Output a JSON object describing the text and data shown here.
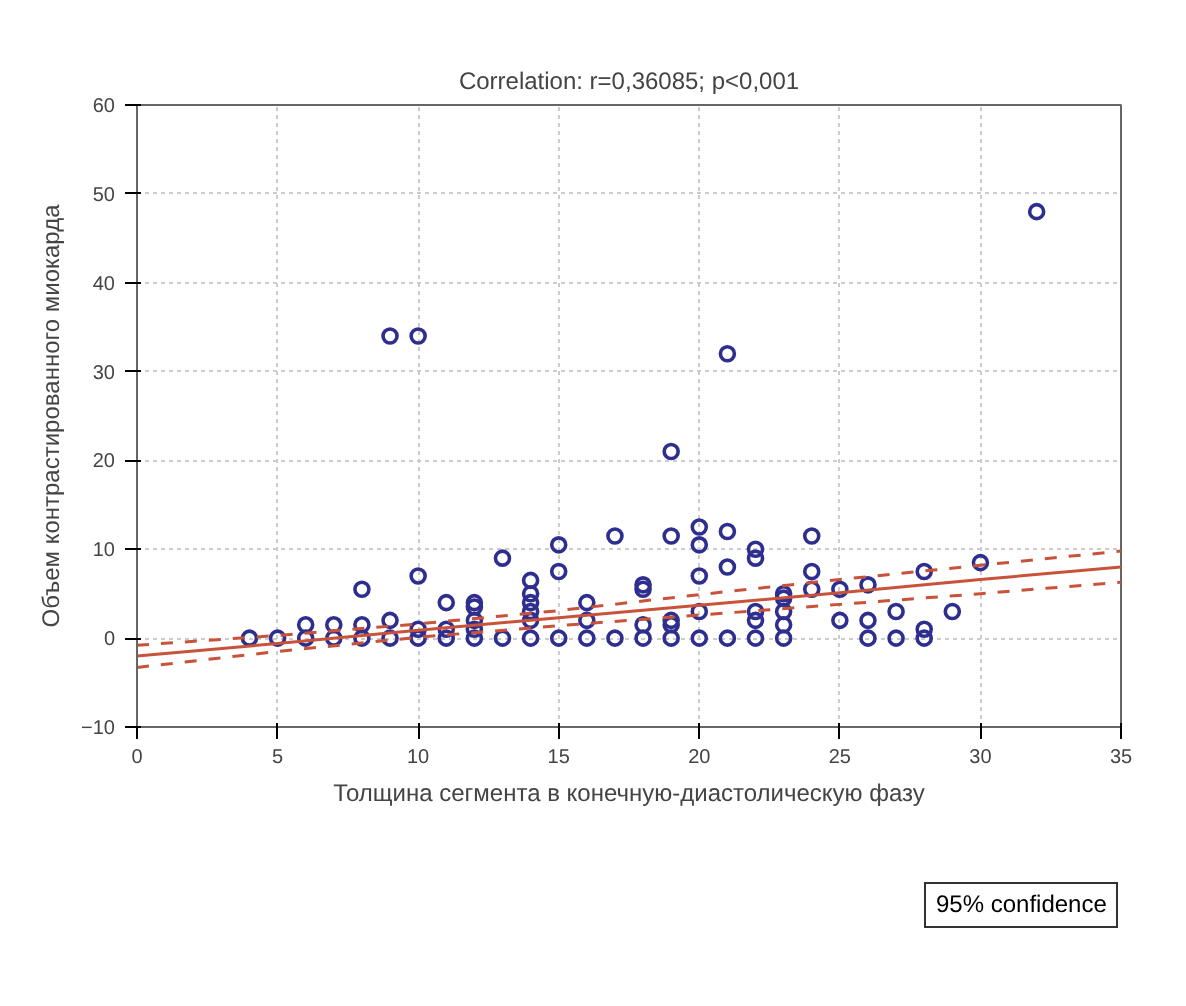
{
  "chart_data": {
    "type": "scatter",
    "title": "Correlation: r=0,36085; p<0,001",
    "xlabel": "Толщина сегмента в конечную-диастолическую фазу",
    "ylabel": "Объем контрастированного миокарда",
    "xlim": [
      0,
      35
    ],
    "ylim": [
      -10,
      60
    ],
    "xticks": [
      0,
      5,
      10,
      15,
      20,
      25,
      30,
      35
    ],
    "yticks": [
      -10,
      0,
      10,
      20,
      30,
      40,
      50,
      60
    ],
    "grid": true,
    "marker": "circle",
    "annotations": [
      "95% confidence"
    ],
    "series": [
      {
        "color": "#2e2e8f",
        "x": [
          4,
          5,
          6,
          6,
          7,
          7,
          8,
          8,
          8,
          9,
          9,
          9,
          10,
          10,
          10,
          10,
          11,
          11,
          11,
          12,
          12,
          12,
          12,
          12,
          13,
          13,
          14,
          14,
          14,
          14,
          14,
          14,
          15,
          15,
          15,
          16,
          16,
          16,
          17,
          17,
          18,
          18,
          18,
          18,
          19,
          19,
          19,
          19,
          19,
          20,
          20,
          20,
          20,
          20,
          21,
          21,
          21,
          21,
          22,
          22,
          22,
          22,
          22,
          23,
          23,
          23,
          23,
          23,
          24,
          24,
          24,
          25,
          25,
          26,
          26,
          26,
          27,
          27,
          28,
          28,
          28,
          29,
          30,
          32
        ],
        "values": [
          0,
          0,
          0,
          1.5,
          0,
          1.5,
          0,
          1.5,
          5.5,
          0,
          2,
          34,
          0,
          1,
          7,
          34,
          0,
          1,
          4,
          0,
          1,
          2,
          3.5,
          4,
          0,
          9,
          0,
          2,
          3,
          4,
          5,
          6.5,
          0,
          7.5,
          10.5,
          0,
          2,
          4,
          0,
          11.5,
          0,
          1.5,
          5.5,
          6,
          0,
          1.5,
          2,
          11.5,
          21,
          0,
          3,
          7,
          10.5,
          12.5,
          0,
          8,
          12,
          32,
          0,
          2,
          3,
          9,
          10,
          0,
          1.5,
          3,
          4.5,
          5,
          5.5,
          7.5,
          11.5,
          2,
          5.5,
          0,
          2,
          6,
          0,
          3,
          0,
          1,
          7.5,
          3,
          8.5,
          48
        ]
      },
      {
        "type": "line",
        "color": "#c9533a",
        "line_style": "solid",
        "marker": "none",
        "x": [
          0,
          5,
          10,
          15,
          20,
          25,
          30,
          35
        ],
        "values": [
          -2,
          -0.6,
          0.9,
          2.3,
          3.7,
          5.1,
          6.6,
          8
        ]
      },
      {
        "type": "line",
        "color": "#c9533a",
        "line_style": "dashed",
        "marker": "none",
        "x": [
          0,
          5,
          10,
          15,
          20,
          25,
          30,
          35
        ],
        "values": [
          -3.3,
          -1.5,
          0.1,
          1.4,
          2.6,
          3.8,
          5,
          6.3
        ]
      },
      {
        "type": "line",
        "color": "#c9533a",
        "line_style": "dashed",
        "marker": "none",
        "x": [
          0,
          5,
          10,
          15,
          20,
          25,
          30,
          35
        ],
        "values": [
          -0.8,
          0.3,
          1.6,
          3.1,
          4.9,
          6.6,
          8.2,
          9.8
        ]
      }
    ]
  }
}
